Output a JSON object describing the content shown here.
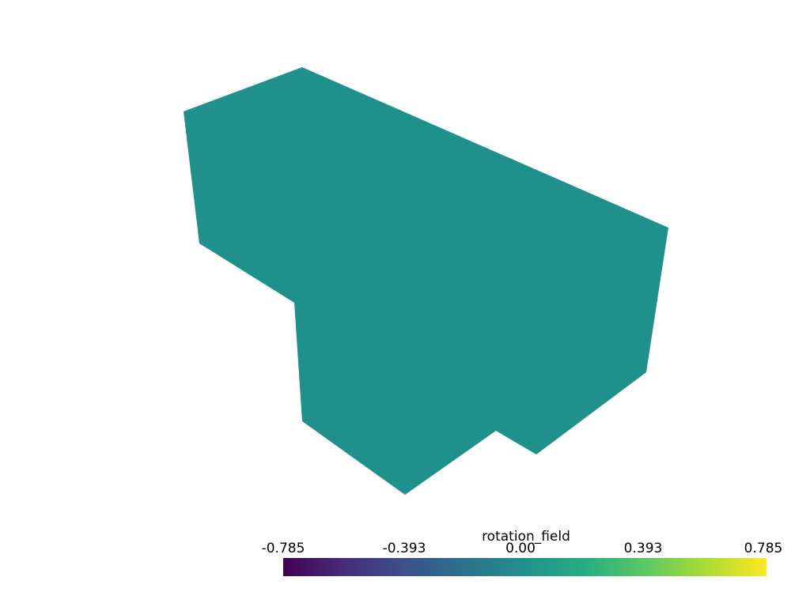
{
  "mesh": {
    "name": "rotation_field",
    "color": "#20908c",
    "value": 0.0
  },
  "scalar_bar": {
    "title": "rotation_field",
    "colormap": "viridis",
    "range": [
      -0.785,
      0.785
    ],
    "ticks": [
      "-0.785",
      "-0.393",
      "0.00",
      "0.393",
      "0.785"
    ],
    "tick_values": [
      -0.785,
      -0.393,
      0.0,
      0.393,
      0.785
    ],
    "colors": [
      "#440154",
      "#472c7a",
      "#3b518b",
      "#2c718e",
      "#21908d",
      "#27ad81",
      "#5cc863",
      "#aadc32",
      "#fde725"
    ]
  },
  "background_color": "#ffffff"
}
